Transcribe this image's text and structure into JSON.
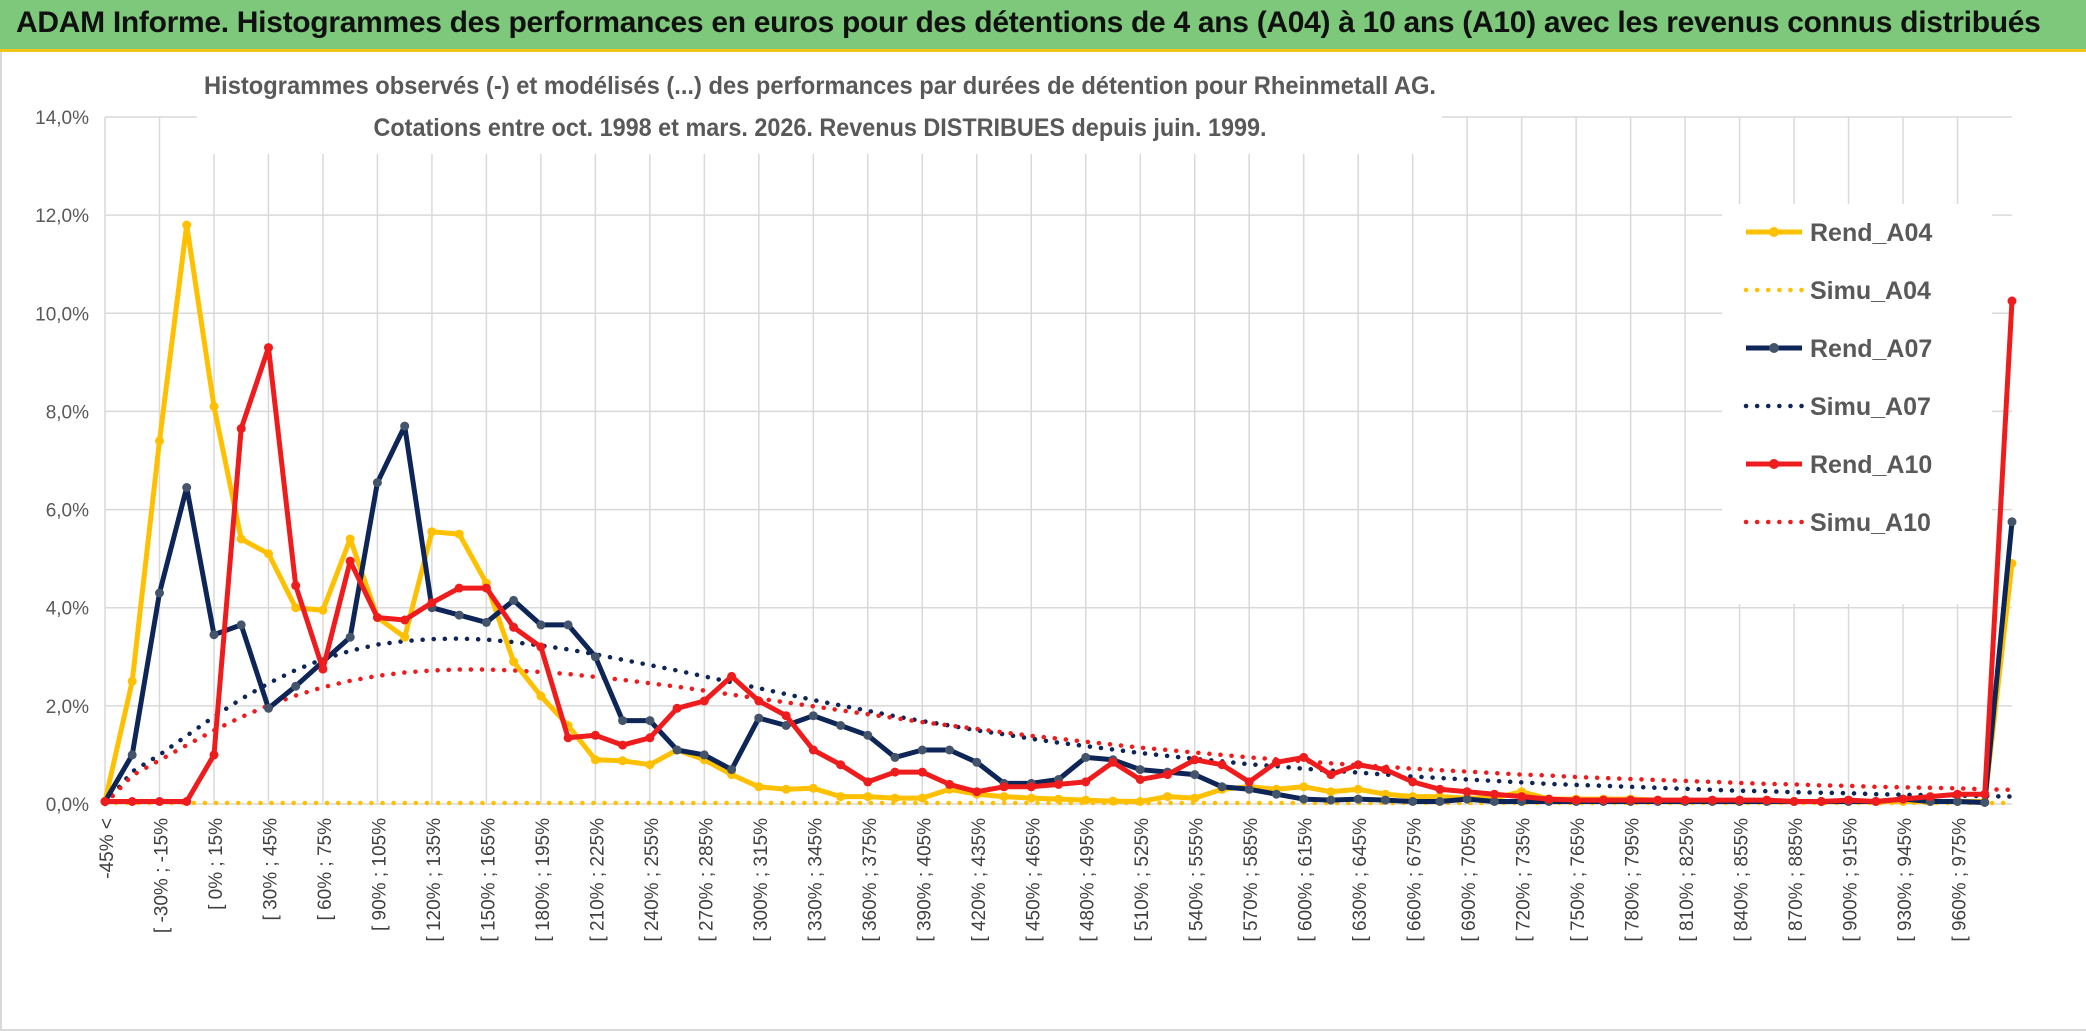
{
  "header": {
    "title": "ADAM Informe. Histogrammes des performances en euros pour des détentions de 4 ans (A04) à 10 ans (A10) avec les revenus connus distribués"
  },
  "chart_data": {
    "type": "line",
    "title_line1": "Histogrammes observés (-) et modélisés (...) des performances par durées de détention pour Rheinmetall AG.",
    "title_line2": "Cotations entre oct. 1998 et mars. 2026. Revenus DISTRIBUES depuis juin. 1999.",
    "ylim": [
      0,
      14
    ],
    "yticks": [
      "0,0%",
      "2,0%",
      "4,0%",
      "6,0%",
      "8,0%",
      "10,0%",
      "12,0%",
      "14,0%"
    ],
    "xlabels": [
      "-45% <",
      "[ -30% ; -15%",
      "[ 0% ; 15%",
      "[ 30% ; 45%",
      "[ 60% ; 75%",
      "[ 90% ; 105%",
      "[ 120% ; 135%",
      "[ 150% ; 165%",
      "[ 180% ; 195%",
      "[ 210% ; 225%",
      "[ 240% ; 255%",
      "[ 270% ; 285%",
      "[ 300% ; 315%",
      "[ 330% ; 345%",
      "[ 360% ; 375%",
      "[ 390% ; 405%",
      "[ 420% ; 435%",
      "[ 450% ; 465%",
      "[ 480% ; 495%",
      "[ 510% ; 525%",
      "[ 540% ; 555%",
      "[ 570% ; 585%",
      "[ 600% ; 615%",
      "[ 630% ; 645%",
      "[ 660% ; 675%",
      "[ 690% ; 705%",
      "[ 720% ; 735%",
      "[ 750% ; 765%",
      "[ 780% ; 795%",
      "[ 810% ; 825%",
      "[ 840% ; 855%",
      "[ 870% ; 885%",
      "[ 900% ; 915%",
      "[ 930% ; 945%",
      "[ 960% ; 975%"
    ],
    "series": [
      {
        "name": "Rend_A04",
        "style": "solid",
        "color": "#ffc000",
        "values": [
          0.05,
          2.5,
          7.4,
          11.8,
          8.1,
          5.4,
          5.1,
          4.0,
          3.95,
          5.4,
          3.8,
          3.4,
          5.55,
          5.5,
          4.5,
          2.9,
          2.2,
          1.6,
          0.9,
          0.88,
          0.8,
          1.1,
          0.9,
          0.6,
          0.35,
          0.3,
          0.32,
          0.15,
          0.15,
          0.12,
          0.12,
          0.3,
          0.2,
          0.15,
          0.12,
          0.1,
          0.08,
          0.06,
          0.05,
          0.15,
          0.12,
          0.3,
          0.35,
          0.3,
          0.35,
          0.25,
          0.3,
          0.2,
          0.15,
          0.15,
          0.12,
          0.12,
          0.25,
          0.1,
          0.1,
          0.1,
          0.1,
          0.08,
          0.08,
          0.06,
          0.05,
          0.05,
          0.05,
          0.05,
          0.05,
          0.05,
          0.05,
          0.05,
          0.05,
          0.05,
          4.9
        ]
      },
      {
        "name": "Simu_A04",
        "style": "dotted",
        "color": "#ffc000",
        "values": [
          0.02,
          0.02,
          0.02,
          0.02,
          0.02,
          0.02,
          0.02,
          0.02,
          0.02,
          0.02,
          0.02,
          0.02,
          0.02,
          0.02,
          0.02,
          0.02,
          0.02,
          0.02,
          0.02,
          0.02,
          0.02,
          0.02,
          0.02,
          0.02,
          0.02,
          0.02,
          0.02,
          0.02,
          0.02,
          0.02,
          0.02,
          0.02,
          0.02,
          0.02,
          0.02,
          0.02,
          0.02,
          0.02,
          0.02,
          0.02,
          0.02,
          0.02,
          0.02,
          0.02,
          0.02,
          0.02,
          0.02,
          0.02,
          0.02,
          0.02,
          0.02,
          0.02,
          0.02,
          0.02,
          0.02,
          0.02,
          0.02,
          0.02,
          0.02,
          0.02,
          0.02,
          0.02,
          0.02,
          0.02,
          0.02,
          0.02,
          0.02,
          0.02,
          0.02,
          0.02,
          0.02
        ]
      },
      {
        "name": "Rend_A07",
        "style": "solid",
        "color": "#0d2557",
        "values": [
          0.05,
          1.0,
          4.3,
          6.45,
          3.45,
          3.65,
          1.95,
          2.4,
          2.9,
          3.4,
          6.55,
          7.7,
          4.0,
          3.85,
          3.7,
          4.15,
          3.65,
          3.65,
          3.0,
          1.7,
          1.7,
          1.1,
          1.0,
          0.7,
          1.75,
          1.6,
          1.8,
          1.6,
          1.4,
          0.95,
          1.1,
          1.1,
          0.85,
          0.42,
          0.42,
          0.5,
          0.95,
          0.9,
          0.7,
          0.65,
          0.6,
          0.35,
          0.3,
          0.2,
          0.1,
          0.08,
          0.1,
          0.08,
          0.05,
          0.05,
          0.1,
          0.05,
          0.05,
          0.05,
          0.05,
          0.05,
          0.05,
          0.05,
          0.05,
          0.05,
          0.05,
          0.05,
          0.05,
          0.05,
          0.05,
          0.05,
          0.1,
          0.05,
          0.05,
          0.03,
          5.75
        ]
      },
      {
        "name": "Simu_A07",
        "style": "dotted",
        "color": "#0d2557",
        "values": [
          0.0,
          0.66,
          1.0,
          1.39,
          1.78,
          2.14,
          2.46,
          2.73,
          2.95,
          3.12,
          3.25,
          3.32,
          3.36,
          3.37,
          3.35,
          3.3,
          3.23,
          3.15,
          3.05,
          2.94,
          2.83,
          2.72,
          2.6,
          2.48,
          2.36,
          2.24,
          2.12,
          2.01,
          1.9,
          1.79,
          1.69,
          1.6,
          1.5,
          1.42,
          1.33,
          1.25,
          1.18,
          1.11,
          1.04,
          0.98,
          0.92,
          0.87,
          0.81,
          0.77,
          0.72,
          0.68,
          0.64,
          0.6,
          0.56,
          0.53,
          0.5,
          0.47,
          0.44,
          0.41,
          0.39,
          0.37,
          0.35,
          0.33,
          0.31,
          0.29,
          0.27,
          0.26,
          0.24,
          0.23,
          0.22,
          0.2,
          0.19,
          0.18,
          0.17,
          0.16,
          0.15
        ]
      },
      {
        "name": "Rend_A10",
        "style": "solid",
        "color": "#ee1c1c",
        "values": [
          0.05,
          0.05,
          0.05,
          0.05,
          1.0,
          7.65,
          9.3,
          4.45,
          2.75,
          4.95,
          3.8,
          3.75,
          4.1,
          4.4,
          4.4,
          3.6,
          3.2,
          1.35,
          1.4,
          1.2,
          1.35,
          1.95,
          2.1,
          2.6,
          2.1,
          1.8,
          1.1,
          0.8,
          0.45,
          0.65,
          0.65,
          0.4,
          0.25,
          0.35,
          0.35,
          0.4,
          0.45,
          0.85,
          0.5,
          0.6,
          0.9,
          0.8,
          0.45,
          0.85,
          0.95,
          0.6,
          0.8,
          0.7,
          0.45,
          0.3,
          0.25,
          0.2,
          0.15,
          0.1,
          0.08,
          0.08,
          0.08,
          0.08,
          0.08,
          0.08,
          0.08,
          0.08,
          0.05,
          0.05,
          0.08,
          0.05,
          0.1,
          0.15,
          0.2,
          0.2,
          10.25
        ]
      },
      {
        "name": "Simu_A10",
        "style": "dotted",
        "color": "#ee1c1c",
        "values": [
          0.0,
          0.58,
          0.89,
          1.2,
          1.5,
          1.77,
          2.01,
          2.21,
          2.38,
          2.51,
          2.61,
          2.68,
          2.72,
          2.74,
          2.74,
          2.72,
          2.69,
          2.65,
          2.59,
          2.53,
          2.46,
          2.39,
          2.31,
          2.23,
          2.15,
          2.07,
          1.99,
          1.91,
          1.83,
          1.75,
          1.67,
          1.6,
          1.53,
          1.46,
          1.39,
          1.33,
          1.27,
          1.21,
          1.15,
          1.1,
          1.05,
          1.0,
          0.95,
          0.91,
          0.87,
          0.83,
          0.79,
          0.76,
          0.72,
          0.69,
          0.66,
          0.63,
          0.6,
          0.58,
          0.55,
          0.53,
          0.51,
          0.49,
          0.47,
          0.45,
          0.43,
          0.41,
          0.4,
          0.38,
          0.37,
          0.35,
          0.34,
          0.33,
          0.32,
          0.3,
          0.29
        ]
      }
    ],
    "legend": [
      "Rend_A04",
      "Simu_A04",
      "Rend_A07",
      "Simu_A07",
      "Rend_A10",
      "Simu_A10"
    ],
    "legend_position": "top-right",
    "grid": true
  }
}
